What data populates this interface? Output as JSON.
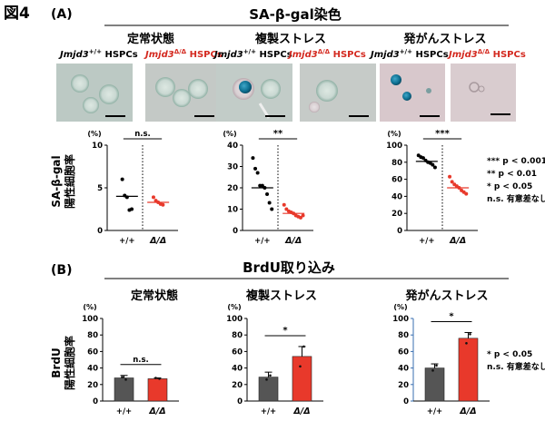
{
  "figure": {
    "label": "図4",
    "panel_a": {
      "letter": "(A)",
      "title": "SA-β-gal染色",
      "ylabel_1": "SA-β-gal",
      "ylabel_2": "陽性細胞率"
    },
    "panel_b": {
      "letter": "(B)",
      "title": "BrdU取り込み",
      "ylabel_1": "BrdU",
      "ylabel_2": "陽性細胞率"
    }
  },
  "conditions": [
    "定常状態",
    "複製ストレス",
    "発がんストレス"
  ],
  "genotype_labels": {
    "wt_html": "Jmjd3<sup>+/+</sup>",
    "ko_name": "Jmjd3",
    "ko_sup": "Δ/Δ",
    "wt_name": "Jmjd3",
    "wt_sup": "+/+",
    "suffix": " HSPCs"
  },
  "x_labels": [
    "+/+",
    "Δ/Δ"
  ],
  "unit": "(%)",
  "legend": {
    "a": [
      "*** p < 0.001",
      "** p < 0.01",
      "* p < 0.05",
      "n.s. 有意差なし"
    ],
    "b": [
      "* p < 0.05",
      "n.s. 有意差なし"
    ]
  },
  "colors": {
    "wt": "#555555",
    "ko": "#e8392b",
    "ko_text": "#d42a20",
    "axis_blue": "#3a6fb0"
  },
  "chart_data": [
    {
      "type": "scatter",
      "title": "定常状態",
      "ylabel": "SA-β-gal 陽性細胞率",
      "yunit": "(%)",
      "ylim": [
        0,
        10
      ],
      "yticks": [
        0,
        5,
        10
      ],
      "categories": [
        "+/+",
        "Δ/Δ"
      ],
      "series": [
        {
          "name": "+/+",
          "values": [
            6.0,
            4.1,
            3.9,
            2.4,
            2.5
          ],
          "median": 4.0
        },
        {
          "name": "Δ/Δ",
          "values": [
            3.9,
            3.5,
            3.3,
            3.1,
            3.0
          ],
          "median": 3.3
        }
      ],
      "significance": "n.s."
    },
    {
      "type": "scatter",
      "title": "複製ストレス",
      "ylabel": "SA-β-gal 陽性細胞率",
      "yunit": "(%)",
      "ylim": [
        0,
        40
      ],
      "yticks": [
        0,
        10,
        20,
        30,
        40
      ],
      "categories": [
        "+/+",
        "Δ/Δ"
      ],
      "series": [
        {
          "name": "+/+",
          "values": [
            34,
            29,
            27,
            21,
            21,
            20,
            17,
            13,
            10
          ],
          "median": 20
        },
        {
          "name": "Δ/Δ",
          "values": [
            12,
            10,
            9,
            8.5,
            8,
            7,
            6.5,
            6,
            7
          ],
          "median": 8
        }
      ],
      "significance": "**"
    },
    {
      "type": "scatter",
      "title": "発がんストレス",
      "ylabel": "SA-β-gal 陽性細胞率",
      "yunit": "(%)",
      "ylim": [
        0,
        100
      ],
      "yticks": [
        0,
        20,
        40,
        60,
        80,
        100
      ],
      "categories": [
        "+/+",
        "Δ/Δ"
      ],
      "series": [
        {
          "name": "+/+",
          "values": [
            88,
            86,
            85,
            82,
            80,
            79,
            77,
            74
          ],
          "median": 81
        },
        {
          "name": "Δ/Δ",
          "values": [
            63,
            57,
            54,
            52,
            50,
            47,
            45,
            43
          ],
          "median": 50
        }
      ],
      "significance": "***"
    },
    {
      "type": "bar",
      "title": "定常状態",
      "ylabel": "BrdU 陽性細胞率",
      "yunit": "(%)",
      "ylim": [
        0,
        100
      ],
      "yticks": [
        0,
        20,
        40,
        60,
        80,
        100
      ],
      "categories": [
        "+/+",
        "Δ/Δ"
      ],
      "values": [
        28,
        27
      ],
      "errors": [
        3,
        1
      ],
      "points": [
        [
          29,
          26
        ],
        [
          28,
          27
        ]
      ],
      "significance": "n.s."
    },
    {
      "type": "bar",
      "title": "複製ストレス",
      "ylabel": "BrdU 陽性細胞率",
      "yunit": "(%)",
      "ylim": [
        0,
        100
      ],
      "yticks": [
        0,
        20,
        40,
        60,
        80,
        100
      ],
      "categories": [
        "+/+",
        "Δ/Δ"
      ],
      "values": [
        29,
        54
      ],
      "errors": [
        6,
        12
      ],
      "points": [
        [
          26,
          31
        ],
        [
          42,
          66
        ]
      ],
      "significance": "*"
    },
    {
      "type": "bar",
      "title": "発がんストレス",
      "ylabel": "BrdU 陽性細胞率",
      "yunit": "(%)",
      "ylim": [
        0,
        100
      ],
      "yticks": [
        0,
        20,
        40,
        60,
        80,
        100
      ],
      "categories": [
        "+/+",
        "Δ/Δ"
      ],
      "values": [
        40,
        76
      ],
      "errors": [
        5,
        7
      ],
      "points": [
        [
          37,
          43
        ],
        [
          70,
          81
        ]
      ],
      "significance": "*"
    }
  ]
}
